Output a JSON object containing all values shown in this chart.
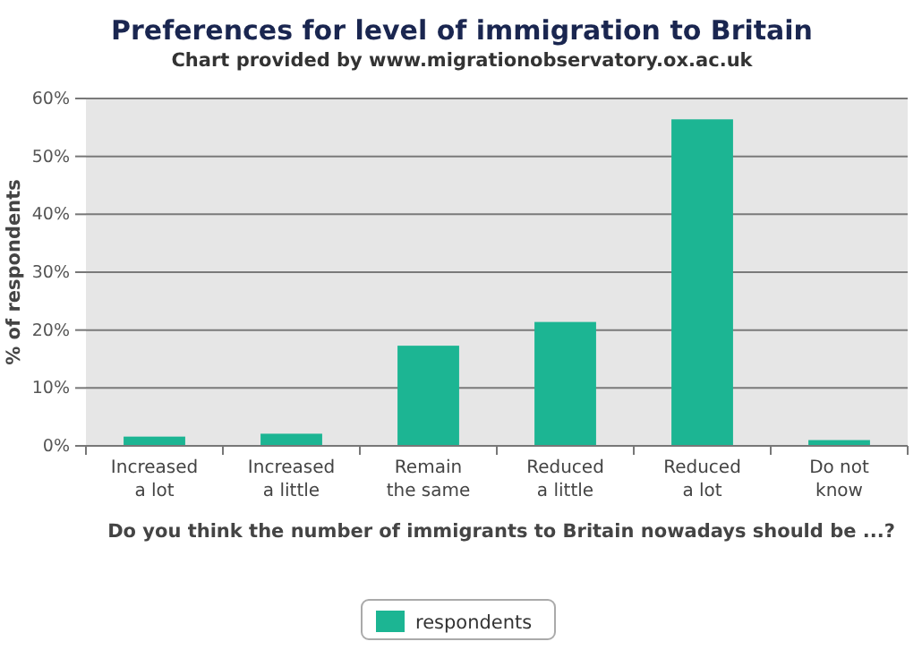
{
  "chart_data": {
    "type": "bar",
    "title": "Preferences for level of immigration to Britain",
    "subtitle": "Chart provided by www.migrationobservatory.ox.ac.uk",
    "xlabel": "Do you think the number of immigrants to Britain nowadays should be ...?",
    "ylabel": "% of respondents",
    "categories": [
      "Increased\na lot",
      "Increased\na little",
      "Remain\nthe same",
      "Reduced\na little",
      "Reduced\na lot",
      "Do not\nknow"
    ],
    "series": [
      {
        "name": "respondents",
        "color": "#1cb593",
        "values": [
          1.6,
          2.1,
          17.3,
          21.4,
          56.4,
          1.0
        ]
      }
    ],
    "ylim": [
      0,
      60
    ],
    "yticks": [
      {
        "value": 0,
        "label": "0%"
      },
      {
        "value": 10,
        "label": "10%"
      },
      {
        "value": 20,
        "label": "20%"
      },
      {
        "value": 30,
        "label": "30%"
      },
      {
        "value": 40,
        "label": "40%"
      },
      {
        "value": 50,
        "label": "50%"
      },
      {
        "value": 60,
        "label": "60%"
      }
    ],
    "grid": "y",
    "legend": "bottom"
  }
}
